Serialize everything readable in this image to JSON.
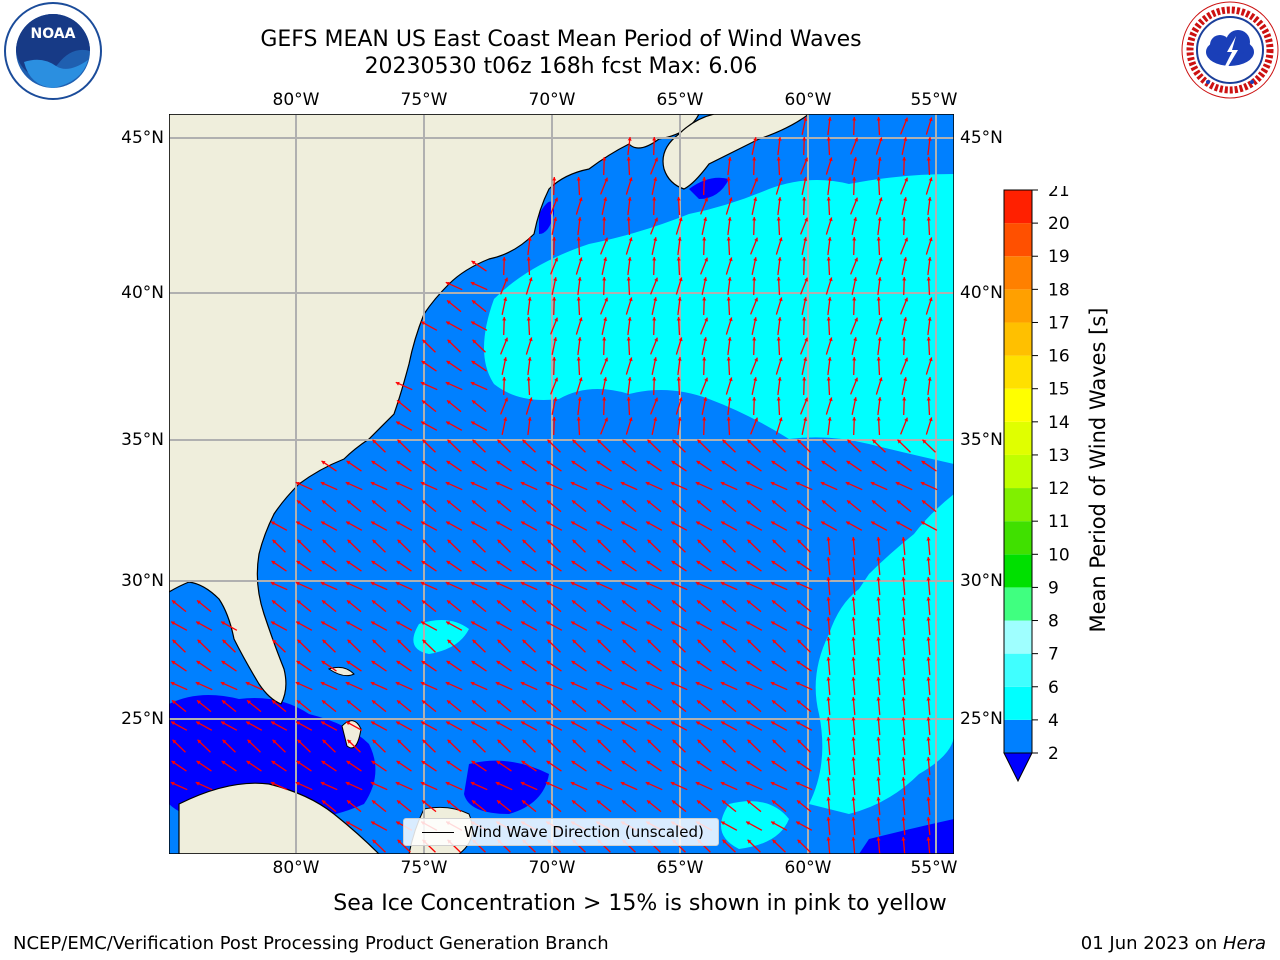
{
  "title": {
    "line1": "GEFS MEAN US East Coast Mean Period of Wind Waves",
    "line2": "20230530 t06z 168h fcst   Max: 6.06"
  },
  "logos": {
    "noaa": {
      "text": "NOAA",
      "ring_text": "NATIONAL OCEANIC AND ATMOSPHERIC ADMINISTRATION · U.S. DEPARTMENT OF COMMERCE"
    },
    "nws": {
      "ring_text": "NATIONAL WEATHER SERVICE"
    }
  },
  "map": {
    "lon_ticks": [
      "80°W",
      "75°W",
      "70°W",
      "65°W",
      "60°W",
      "55°W"
    ],
    "lat_ticks": [
      "45°N",
      "40°N",
      "35°N",
      "30°N",
      "25°N"
    ],
    "extent": {
      "lon_min": -85,
      "lon_max": -54.3,
      "lat_min": 20,
      "lat_max": 46.1
    },
    "colors": {
      "land": "#efeedc",
      "ocean_2_4": "#0080ff",
      "ocean_0_2": "#0000ff",
      "ocean_4_6": "#00ffff",
      "arrows": "#ff0000",
      "grid": "#b0b0b0"
    },
    "legend": {
      "label": "Wind Wave Direction (unscaled)"
    }
  },
  "colorbar": {
    "label": "Mean Period of Wind Waves [s]",
    "ticks": [
      "2",
      "4",
      "6",
      "7",
      "8",
      "9",
      "10",
      "11",
      "12",
      "13",
      "14",
      "15",
      "16",
      "17",
      "18",
      "19",
      "20",
      "21"
    ],
    "colors": [
      "#0080ff",
      "#00ffff",
      "#40ffff",
      "#9fffff",
      "#40ff80",
      "#00e000",
      "#40e000",
      "#80f000",
      "#c0ff00",
      "#e0ff00",
      "#ffff00",
      "#ffe000",
      "#ffc000",
      "#ffa000",
      "#ff8000",
      "#ff5000",
      "#ff2000"
    ],
    "underflow_color": "#0000ff"
  },
  "note": "Sea Ice Concentration > 15% is shown in pink to yellow",
  "footer": {
    "left": "NCEP/EMC/Verification Post Processing Product Generation Branch",
    "right_date": "01 Jun 2023 on ",
    "right_machine": "Hera"
  }
}
